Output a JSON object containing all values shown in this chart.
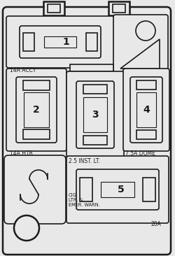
{
  "bg_color": "#e8e8e8",
  "border_color": "#1a1a1a",
  "figsize": [
    2.5,
    3.66
  ],
  "dpi": 100,
  "labels": {
    "fuse1": "1",
    "fuse2": "2",
    "fuse3": "3",
    "fuse4": "4",
    "fuse5": "5",
    "accy": "14A ACCY",
    "htr": "14A HTR",
    "inst": "2.5 INST. LT.",
    "dome": "7.5A DOME",
    "cig": "CIG.\nLTR. &\nEMER. WARN.",
    "amps": "20A"
  }
}
